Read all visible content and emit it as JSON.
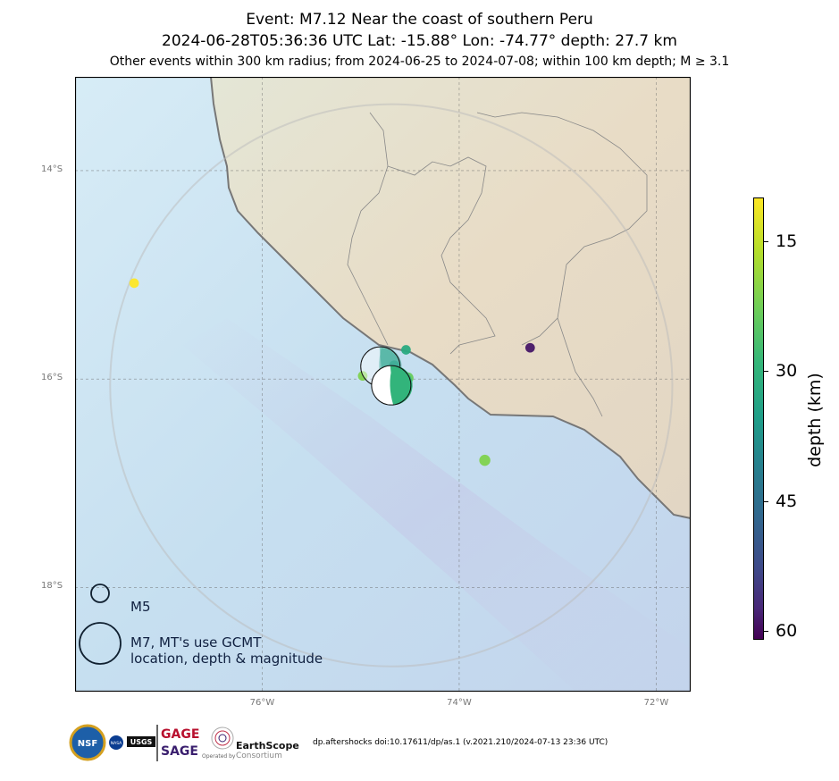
{
  "title": {
    "line1": "Event: M7.12 Near the coast of southern Peru",
    "line2": "2024-06-28T05:36:36 UTC Lat: -15.88° Lon: -74.77° depth: 27.7 km",
    "line3": "Other events within 300 km radius; from 2024-06-25 to 2024-07-08; within 100 km depth; M ≥ 3.1"
  },
  "map": {
    "lon_range": [
      -77.9,
      -71.65
    ],
    "lat_range": [
      -13.1,
      -19.0
    ],
    "grid_lons": [
      -76,
      -74,
      -72
    ],
    "grid_lats": [
      -14,
      -16,
      -18
    ],
    "lon_labels": [
      "76°W",
      "74°W",
      "72°W"
    ],
    "lat_labels": [
      "14°S",
      "16°S",
      "18°S"
    ],
    "search_radius_km": 300,
    "mainshock": {
      "lat": -16.06,
      "lon": -74.69,
      "depth_km": 27.7,
      "magnitude": 7.12,
      "beachball": true
    },
    "events": [
      {
        "lat": -15.08,
        "lon": -77.3,
        "depth_km": 10,
        "mag": 4.3
      },
      {
        "lat": -15.72,
        "lon": -74.54,
        "depth_km": 30,
        "mag": 4.3
      },
      {
        "lat": -15.7,
        "lon": -73.28,
        "depth_km": 58,
        "mag": 4.3
      },
      {
        "lat": -16.78,
        "lon": -73.74,
        "depth_km": 20,
        "mag": 4.6
      },
      {
        "lat": -15.97,
        "lon": -74.98,
        "depth_km": 20,
        "mag": 4.3
      },
      {
        "lat": -15.93,
        "lon": -74.73,
        "depth_km": 30,
        "mag": 4.6
      },
      {
        "lat": -15.99,
        "lon": -74.52,
        "depth_km": 22,
        "mag": 4.6
      },
      {
        "lat": -15.87,
        "lon": -74.66,
        "depth_km": 32,
        "mag": 4.4
      },
      {
        "lat": -15.96,
        "lon": -74.8,
        "depth_km": 25,
        "mag": 4.5
      }
    ],
    "aftershock_mt": {
      "lat": -15.88,
      "lon": -74.8,
      "depth_km": 32,
      "beachball": true,
      "translucent": true
    }
  },
  "colorbar": {
    "label": "depth (km)",
    "min": 10,
    "max": 61,
    "ticks": [
      15,
      30,
      45,
      60
    ],
    "tick_labels": [
      "15",
      "30",
      "45",
      "60"
    ],
    "colormap": "viridis_r"
  },
  "legend": {
    "m5_label": "M5",
    "m7_label_line1": "M7, MT's use GCMT",
    "m7_label_line2": "location, depth & magnitude"
  },
  "footer": {
    "doi": "dp.aftershocks doi:10.17611/dp/as.1 (v.2021.210/2024-07-13 23:36 UTC)",
    "logo_nsf": "NSF",
    "logo_nasa": "NASA",
    "logo_usgs": "USGS",
    "gage": "GAGE",
    "sage": "SAGE",
    "earthscope": "EarthScope",
    "earthscope_sub": "Consortium",
    "operated_by": "Operated by"
  },
  "colors": {
    "ocean": "#c6e0f2",
    "land": "#e6ddc8",
    "coast": "#777777",
    "grid": "#666666"
  }
}
